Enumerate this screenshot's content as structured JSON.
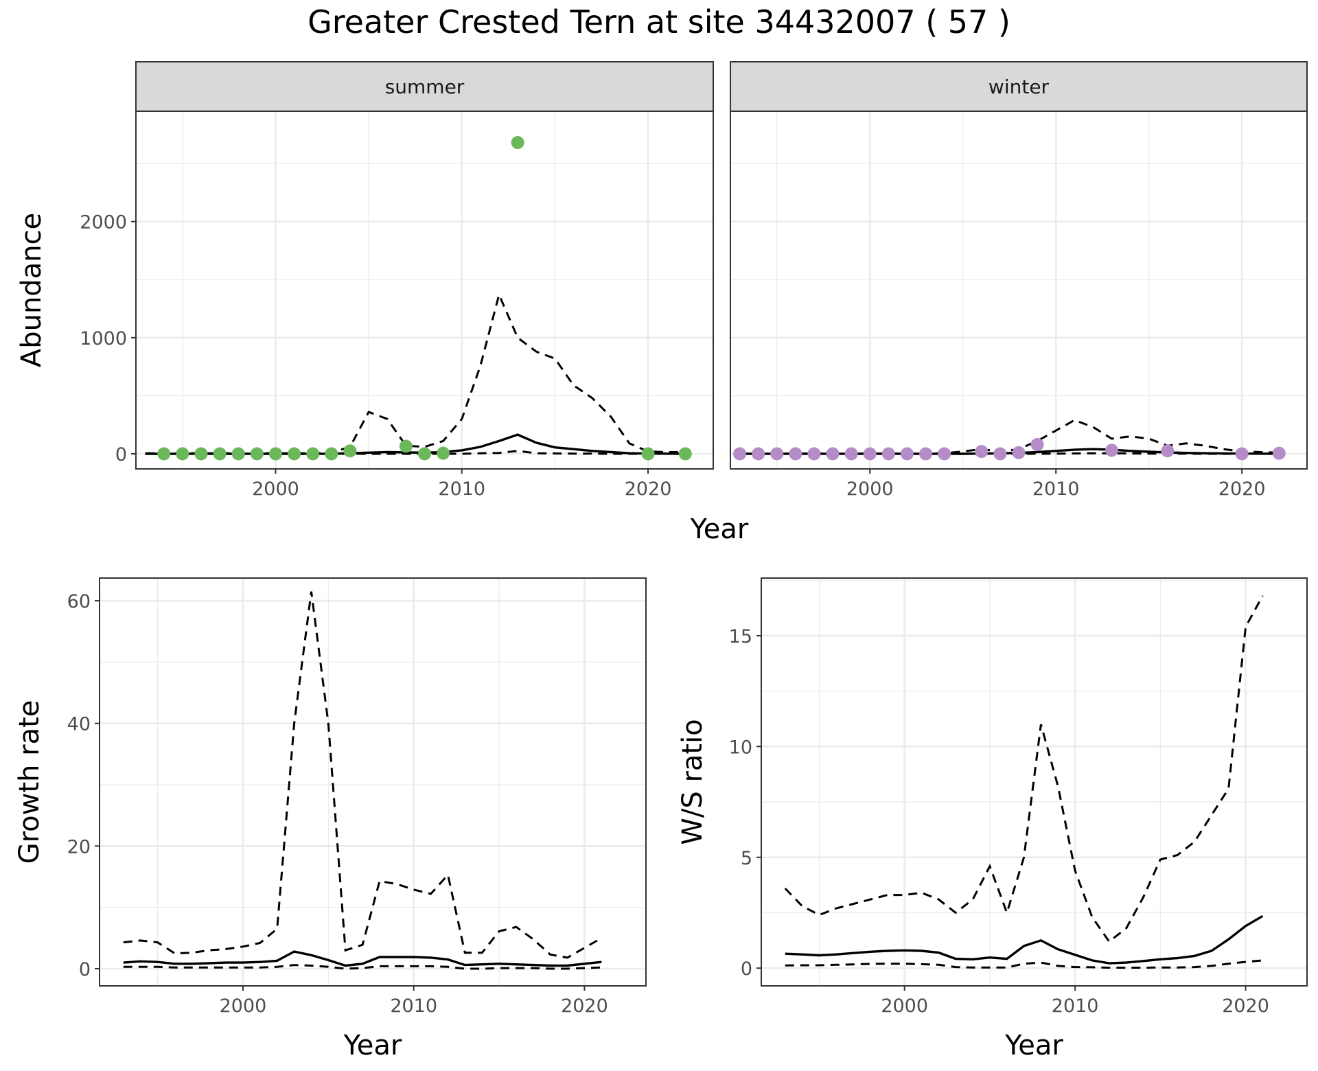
{
  "figure": {
    "title": "Greater Crested Tern at site 34432007 ( 57 )",
    "shared_xlabel_top": "Year"
  },
  "chart_data": [
    {
      "id": "abundance_summer",
      "type": "line",
      "strip": "summer",
      "ylabel": "Abundance",
      "xlim": [
        1992.5,
        2023.5
      ],
      "ylim": [
        -130,
        2950
      ],
      "xticks": [
        2000,
        2010,
        2020
      ],
      "yticks": [
        0,
        1000,
        2000
      ],
      "grid": true,
      "point_color": "#6ab85a",
      "points": {
        "x": [
          1994,
          1995,
          1996,
          1997,
          1998,
          1999,
          2000,
          2001,
          2002,
          2003,
          2004,
          2007,
          2008,
          2009,
          2013,
          2020,
          2022
        ],
        "y": [
          0,
          0,
          0,
          0,
          0,
          0,
          0,
          0,
          0,
          0,
          25,
          65,
          0,
          5,
          2680,
          0,
          0
        ]
      },
      "series": [
        {
          "style": "solid",
          "x": [
            1993,
            1994,
            1995,
            1996,
            1997,
            1998,
            1999,
            2000,
            2001,
            2002,
            2003,
            2004,
            2005,
            2006,
            2007,
            2008,
            2009,
            2010,
            2011,
            2012,
            2013,
            2014,
            2015,
            2016,
            2017,
            2018,
            2019,
            2020,
            2021,
            2022
          ],
          "y": [
            0,
            0,
            0,
            0,
            0,
            0,
            0,
            0,
            0,
            0,
            0,
            5,
            10,
            15,
            12,
            10,
            15,
            30,
            60,
            110,
            165,
            95,
            55,
            40,
            25,
            15,
            5,
            2,
            1,
            0
          ]
        },
        {
          "style": "dashed",
          "x": [
            1993,
            1994,
            1995,
            1996,
            1997,
            1998,
            1999,
            2000,
            2001,
            2002,
            2003,
            2004,
            2005,
            2006,
            2007,
            2008,
            2009,
            2010,
            2011,
            2012,
            2013,
            2014,
            2015,
            2016,
            2017,
            2018,
            2019,
            2020,
            2021,
            2022
          ],
          "y": [
            5,
            5,
            5,
            5,
            5,
            5,
            5,
            5,
            5,
            5,
            10,
            60,
            360,
            300,
            70,
            60,
            110,
            300,
            760,
            1370,
            1000,
            880,
            820,
            590,
            480,
            320,
            90,
            20,
            15,
            15
          ]
        },
        {
          "style": "dashed",
          "x": [
            1993,
            1994,
            1995,
            1996,
            1997,
            1998,
            1999,
            2000,
            2001,
            2002,
            2003,
            2004,
            2005,
            2006,
            2007,
            2008,
            2009,
            2010,
            2011,
            2012,
            2013,
            2014,
            2015,
            2016,
            2017,
            2018,
            2019,
            2020,
            2021,
            2022
          ],
          "y": [
            0,
            0,
            0,
            0,
            0,
            0,
            0,
            0,
            0,
            0,
            0,
            0,
            0,
            0,
            0,
            0,
            0,
            0,
            5,
            8,
            25,
            5,
            3,
            2,
            1,
            0,
            0,
            0,
            0,
            0
          ]
        }
      ]
    },
    {
      "id": "abundance_winter",
      "type": "line",
      "strip": "winter",
      "ylabel": "",
      "xlim": [
        1992.5,
        2023.5
      ],
      "ylim": [
        -130,
        2950
      ],
      "xticks": [
        2000,
        2010,
        2020
      ],
      "yticks": [
        0,
        1000,
        2000
      ],
      "grid": true,
      "point_color": "#b48cc8",
      "points": {
        "x": [
          1993,
          1994,
          1995,
          1996,
          1997,
          1998,
          1999,
          2000,
          2001,
          2002,
          2003,
          2004,
          2006,
          2007,
          2008,
          2009,
          2013,
          2016,
          2020,
          2022
        ],
        "y": [
          0,
          0,
          0,
          0,
          0,
          0,
          0,
          0,
          0,
          0,
          0,
          0,
          20,
          0,
          10,
          80,
          30,
          25,
          0,
          5
        ]
      },
      "series": [
        {
          "style": "solid",
          "x": [
            1993,
            1994,
            1995,
            1996,
            1997,
            1998,
            1999,
            2000,
            2001,
            2002,
            2003,
            2004,
            2005,
            2006,
            2007,
            2008,
            2009,
            2010,
            2011,
            2012,
            2013,
            2014,
            2015,
            2016,
            2017,
            2018,
            2019,
            2020,
            2021,
            2022
          ],
          "y": [
            0,
            0,
            0,
            0,
            0,
            0,
            0,
            0,
            0,
            0,
            0,
            0,
            0,
            2,
            4,
            8,
            15,
            25,
            35,
            40,
            35,
            25,
            18,
            12,
            8,
            5,
            3,
            2,
            1,
            0
          ]
        },
        {
          "style": "dashed",
          "x": [
            1993,
            1994,
            1995,
            1996,
            1997,
            1998,
            1999,
            2000,
            2001,
            2002,
            2003,
            2004,
            2005,
            2006,
            2007,
            2008,
            2009,
            2010,
            2011,
            2012,
            2013,
            2014,
            2015,
            2016,
            2017,
            2018,
            2019,
            2020,
            2021,
            2022
          ],
          "y": [
            2,
            2,
            2,
            2,
            2,
            2,
            2,
            2,
            2,
            2,
            2,
            5,
            20,
            40,
            20,
            40,
            110,
            200,
            290,
            230,
            130,
            150,
            130,
            70,
            90,
            70,
            40,
            20,
            15,
            10
          ]
        },
        {
          "style": "dashed",
          "x": [
            1993,
            1994,
            1995,
            1996,
            1997,
            1998,
            1999,
            2000,
            2001,
            2002,
            2003,
            2004,
            2005,
            2006,
            2007,
            2008,
            2009,
            2010,
            2011,
            2012,
            2013,
            2014,
            2015,
            2016,
            2017,
            2018,
            2019,
            2020,
            2021,
            2022
          ],
          "y": [
            0,
            0,
            0,
            0,
            0,
            0,
            0,
            0,
            0,
            0,
            0,
            0,
            0,
            0,
            0,
            0,
            0,
            2,
            3,
            5,
            5,
            3,
            2,
            1,
            1,
            0,
            0,
            0,
            0,
            0
          ]
        }
      ]
    },
    {
      "id": "growth_rate",
      "type": "line",
      "xlabel": "Year",
      "ylabel": "Growth rate",
      "xlim": [
        1991.6,
        2023.6
      ],
      "ylim": [
        -2.8,
        63.7
      ],
      "xticks": [
        2000,
        2010,
        2020
      ],
      "yticks": [
        0,
        20,
        40,
        60
      ],
      "grid": true,
      "series": [
        {
          "style": "solid",
          "x": [
            1993,
            1994,
            1995,
            1996,
            1997,
            1998,
            1999,
            2000,
            2001,
            2002,
            2003,
            2004,
            2005,
            2006,
            2007,
            2008,
            2009,
            2010,
            2011,
            2012,
            2013,
            2014,
            2015,
            2016,
            2017,
            2018,
            2019,
            2020,
            2021
          ],
          "y": [
            1.0,
            1.2,
            1.1,
            0.8,
            0.8,
            0.9,
            1.0,
            1.0,
            1.1,
            1.3,
            2.8,
            2.2,
            1.4,
            0.5,
            0.8,
            1.9,
            1.9,
            1.9,
            1.8,
            1.5,
            0.6,
            0.7,
            0.8,
            0.7,
            0.6,
            0.5,
            0.5,
            0.8,
            1.1
          ]
        },
        {
          "style": "dashed",
          "x": [
            1993,
            1994,
            1995,
            1996,
            1997,
            1998,
            1999,
            2000,
            2001,
            2002,
            2003,
            2004,
            2005,
            2006,
            2007,
            2008,
            2009,
            2010,
            2011,
            2012,
            2013,
            2014,
            2015,
            2016,
            2017,
            2018,
            2019,
            2020,
            2021
          ],
          "y": [
            4.3,
            4.6,
            4.3,
            2.5,
            2.6,
            3.0,
            3.2,
            3.6,
            4.2,
            6.5,
            40,
            61.5,
            40,
            3.0,
            3.9,
            14.3,
            13.8,
            12.9,
            12.2,
            15.3,
            2.6,
            2.6,
            6.1,
            6.8,
            4.8,
            2.3,
            1.8,
            3.4,
            5.0
          ]
        },
        {
          "style": "dashed",
          "x": [
            1993,
            1994,
            1995,
            1996,
            1997,
            1998,
            1999,
            2000,
            2001,
            2002,
            2003,
            2004,
            2005,
            2006,
            2007,
            2008,
            2009,
            2010,
            2011,
            2012,
            2013,
            2014,
            2015,
            2016,
            2017,
            2018,
            2019,
            2020,
            2021
          ],
          "y": [
            0.3,
            0.3,
            0.3,
            0.2,
            0.2,
            0.2,
            0.2,
            0.2,
            0.2,
            0.3,
            0.6,
            0.5,
            0.3,
            0.0,
            0.1,
            0.4,
            0.4,
            0.4,
            0.4,
            0.3,
            0.0,
            0.0,
            0.1,
            0.1,
            0.1,
            0.0,
            0.0,
            0.1,
            0.2
          ]
        }
      ]
    },
    {
      "id": "ws_ratio",
      "type": "line",
      "xlabel": "Year",
      "ylabel": "W/S ratio",
      "xlim": [
        1991.6,
        2023.6
      ],
      "ylim": [
        -0.8,
        17.6
      ],
      "xticks": [
        2000,
        2010,
        2020
      ],
      "yticks": [
        0,
        5,
        10,
        15
      ],
      "grid": true,
      "series": [
        {
          "style": "solid",
          "x": [
            1993,
            1994,
            1995,
            1996,
            1997,
            1998,
            1999,
            2000,
            2001,
            2002,
            2003,
            2004,
            2005,
            2006,
            2007,
            2008,
            2009,
            2010,
            2011,
            2012,
            2013,
            2014,
            2015,
            2016,
            2017,
            2018,
            2019,
            2020,
            2021
          ],
          "y": [
            0.65,
            0.62,
            0.58,
            0.62,
            0.68,
            0.74,
            0.78,
            0.8,
            0.78,
            0.7,
            0.42,
            0.4,
            0.48,
            0.42,
            1.0,
            1.25,
            0.85,
            0.6,
            0.35,
            0.22,
            0.25,
            0.32,
            0.4,
            0.45,
            0.55,
            0.78,
            1.3,
            1.9,
            2.35
          ]
        },
        {
          "style": "dashed",
          "x": [
            1993,
            1994,
            1995,
            1996,
            1997,
            1998,
            1999,
            2000,
            2001,
            2002,
            2003,
            2004,
            2005,
            2006,
            2007,
            2008,
            2009,
            2010,
            2011,
            2012,
            2013,
            2014,
            2015,
            2016,
            2017,
            2018,
            2019,
            2020,
            2021
          ],
          "y": [
            3.6,
            2.8,
            2.4,
            2.7,
            2.9,
            3.1,
            3.3,
            3.3,
            3.4,
            3.1,
            2.5,
            3.1,
            4.6,
            2.5,
            5.0,
            11.0,
            8.2,
            4.4,
            2.3,
            1.2,
            1.8,
            3.2,
            4.9,
            5.1,
            5.7,
            6.9,
            8.1,
            15.4,
            16.8
          ]
        },
        {
          "style": "dashed",
          "x": [
            1993,
            1994,
            1995,
            1996,
            1997,
            1998,
            1999,
            2000,
            2001,
            2002,
            2003,
            2004,
            2005,
            2006,
            2007,
            2008,
            2009,
            2010,
            2011,
            2012,
            2013,
            2014,
            2015,
            2016,
            2017,
            2018,
            2019,
            2020,
            2021
          ],
          "y": [
            0.12,
            0.13,
            0.13,
            0.15,
            0.17,
            0.19,
            0.2,
            0.2,
            0.18,
            0.15,
            0.05,
            0.03,
            0.03,
            0.03,
            0.2,
            0.25,
            0.1,
            0.05,
            0.04,
            0.02,
            0.02,
            0.02,
            0.03,
            0.03,
            0.05,
            0.1,
            0.2,
            0.28,
            0.35
          ]
        }
      ]
    }
  ]
}
